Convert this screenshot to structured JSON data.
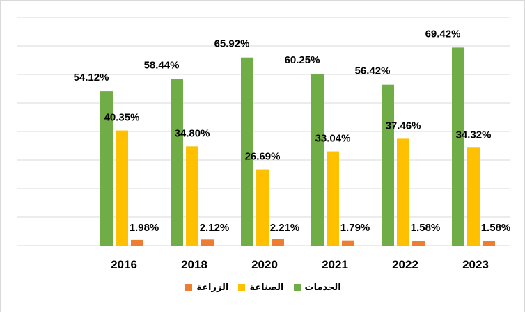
{
  "chart_data": {
    "type": "bar",
    "title": "",
    "xlabel": "",
    "ylabel": "",
    "ylim": [
      0,
      80
    ],
    "grid": true,
    "gridline_step": 10,
    "categories": [
      "2016",
      "2018",
      "2020",
      "2021",
      "2022",
      "2023"
    ],
    "series": [
      {
        "name": "الخدمات",
        "color": "#70AD47",
        "values": [
          54.12,
          58.44,
          65.92,
          60.25,
          56.42,
          69.42
        ],
        "labels": [
          "54.12%",
          "58.44%",
          "65.92%",
          "60.25%",
          "56.42%",
          "69.42%"
        ]
      },
      {
        "name": "الصناعة",
        "color": "#FFC000",
        "values": [
          40.35,
          34.8,
          26.69,
          33.04,
          37.46,
          34.32
        ],
        "labels": [
          "40.35%",
          "34.80%",
          "26.69%",
          "33.04%",
          "37.46%",
          "34.32%"
        ]
      },
      {
        "name": "الزراعة",
        "color": "#ED7D31",
        "values": [
          1.98,
          2.12,
          2.21,
          1.79,
          1.58,
          1.58
        ],
        "labels": [
          "1.98%",
          "2.12%",
          "2.21%",
          "1.79%",
          "1.58%",
          "1.58%"
        ]
      }
    ],
    "legend_position": "bottom"
  }
}
